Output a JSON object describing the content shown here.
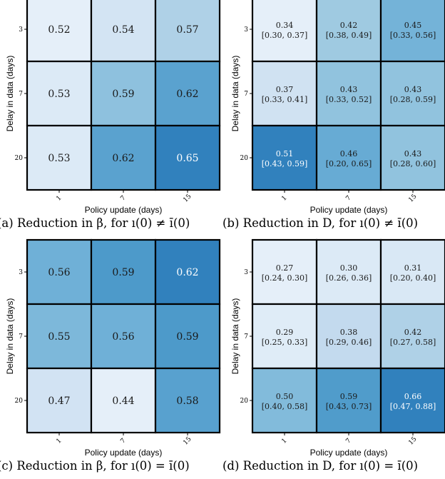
{
  "chart_data": [
    {
      "type": "heatmap",
      "caption": "(a) Reduction in β, for ı(0) ≠ ı̄(0)",
      "xlabel": "Policy update (days)",
      "ylabel": "Delay in data (days)",
      "x_ticks": [
        "1",
        "7",
        "15"
      ],
      "y_ticks": [
        "3",
        "7",
        "20"
      ],
      "values": [
        [
          0.52,
          0.54,
          0.57
        ],
        [
          0.53,
          0.59,
          0.62
        ],
        [
          0.53,
          0.62,
          0.65
        ]
      ],
      "labels": [
        [
          "0.52",
          "0.54",
          "0.57"
        ],
        [
          "0.53",
          "0.59",
          "0.62"
        ],
        [
          "0.53",
          "0.62",
          "0.65"
        ]
      ],
      "intervals": null
    },
    {
      "type": "heatmap",
      "caption": "(b) Reduction in D, for ı(0) ≠ ı̄(0)",
      "xlabel": "Policy update (days)",
      "ylabel": "Delay in data (days)",
      "x_ticks": [
        "1",
        "7",
        "15"
      ],
      "y_ticks": [
        "3",
        "7",
        "20"
      ],
      "values": [
        [
          0.34,
          0.42,
          0.45
        ],
        [
          0.37,
          0.43,
          0.43
        ],
        [
          0.51,
          0.46,
          0.43
        ]
      ],
      "labels": [
        [
          "0.34",
          "0.42",
          "0.45"
        ],
        [
          "0.37",
          "0.43",
          "0.43"
        ],
        [
          "0.51",
          "0.46",
          "0.43"
        ]
      ],
      "intervals": [
        [
          "[0.30, 0.37]",
          "[0.38, 0.49]",
          "[0.33, 0.56]"
        ],
        [
          "[0.33, 0.41]",
          "[0.33, 0.52]",
          "[0.28, 0.59]"
        ],
        [
          "[0.43, 0.59]",
          "[0.20, 0.65]",
          "[0.28, 0.60]"
        ]
      ]
    },
    {
      "type": "heatmap",
      "caption": "(c) Reduction in β, for ı(0) = ı̄(0)",
      "xlabel": "Policy update (days)",
      "ylabel": "Delay in data (days)",
      "x_ticks": [
        "1",
        "7",
        "15"
      ],
      "y_ticks": [
        "3",
        "7",
        "20"
      ],
      "values": [
        [
          0.56,
          0.59,
          0.62
        ],
        [
          0.55,
          0.56,
          0.59
        ],
        [
          0.47,
          0.44,
          0.58
        ]
      ],
      "labels": [
        [
          "0.56",
          "0.59",
          "0.62"
        ],
        [
          "0.55",
          "0.56",
          "0.59"
        ],
        [
          "0.47",
          "0.44",
          "0.58"
        ]
      ],
      "intervals": null
    },
    {
      "type": "heatmap",
      "caption": "(d) Reduction in D, for ı(0) = ı̄(0)",
      "xlabel": "Policy update (days)",
      "ylabel": "Delay in data (days)",
      "x_ticks": [
        "1",
        "7",
        "15"
      ],
      "y_ticks": [
        "3",
        "7",
        "20"
      ],
      "values": [
        [
          0.27,
          0.3,
          0.31
        ],
        [
          0.29,
          0.38,
          0.42
        ],
        [
          0.5,
          0.59,
          0.66
        ]
      ],
      "labels": [
        [
          "0.27",
          "0.30",
          "0.31"
        ],
        [
          "0.29",
          "0.38",
          "0.42"
        ],
        [
          "0.50",
          "0.59",
          "0.66"
        ]
      ],
      "intervals": [
        [
          "[0.24, 0.30]",
          "[0.26, 0.36]",
          "[0.20, 0.40]"
        ],
        [
          "[0.25, 0.33]",
          "[0.29, 0.46]",
          "[0.27, 0.58]"
        ],
        [
          "[0.40, 0.58]",
          "[0.43, 0.73]",
          "[0.47, 0.88]"
        ]
      ]
    }
  ]
}
